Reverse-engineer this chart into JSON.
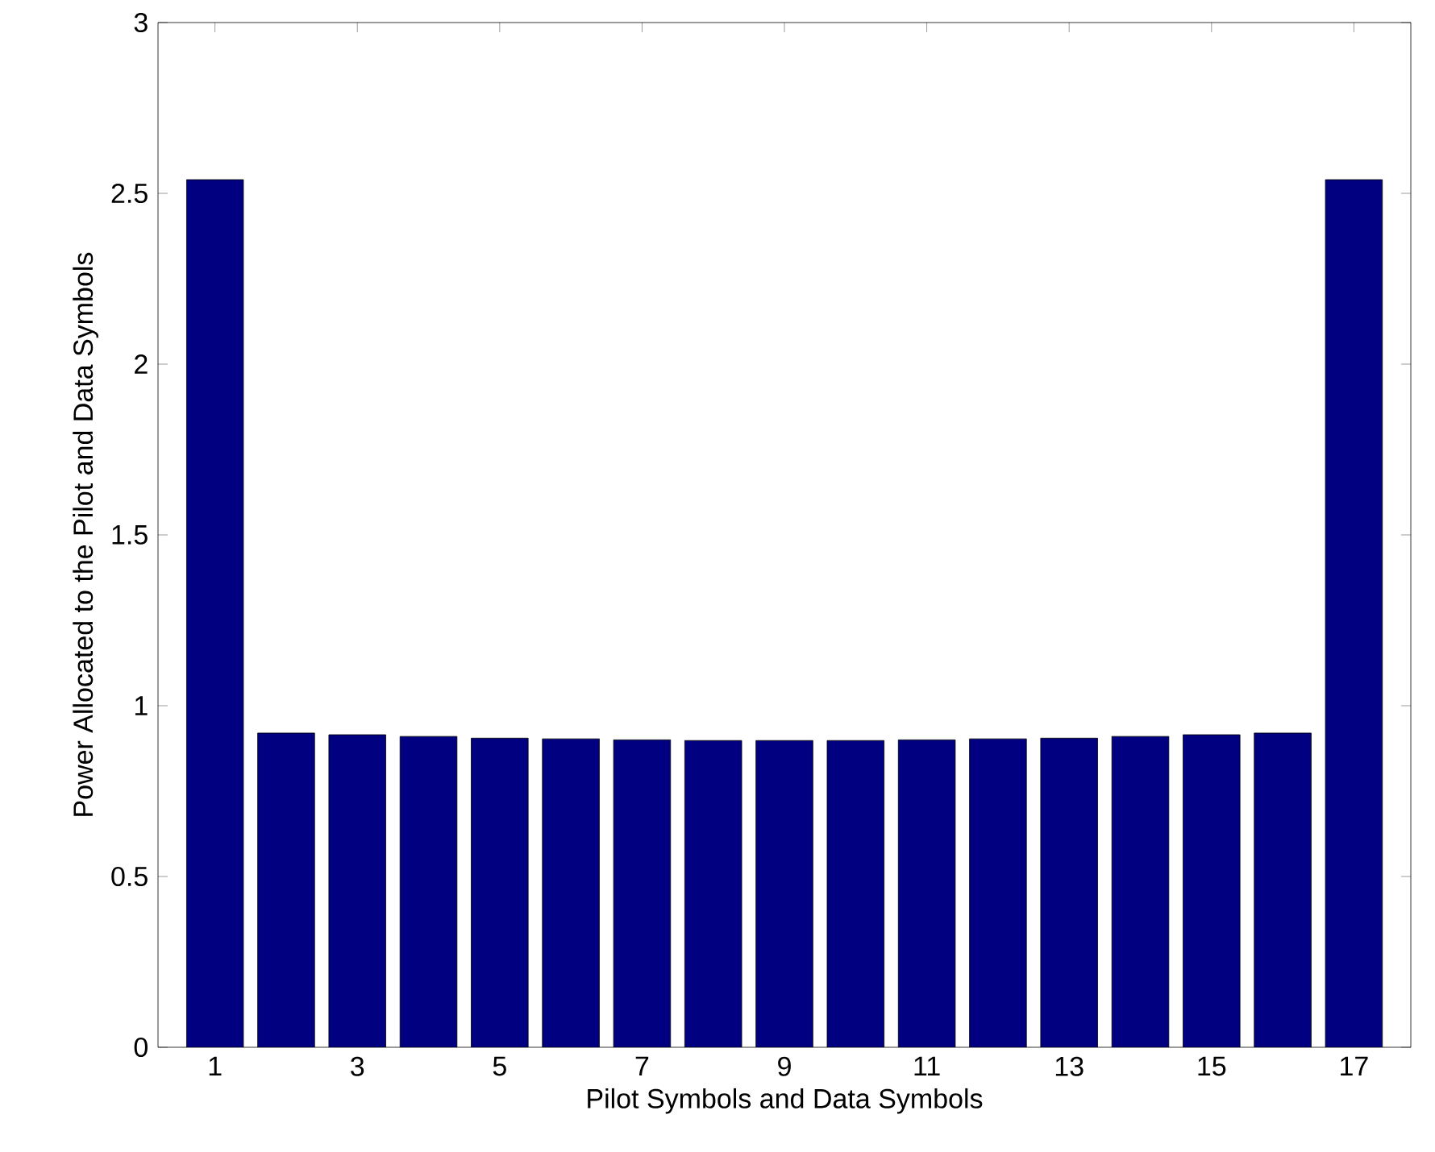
{
  "chart_data": {
    "type": "bar",
    "xlabel": "Pilot Symbols and Data Symbols",
    "ylabel": "Power Allocated to the Pilot and Data Symbols",
    "x": [
      1,
      2,
      3,
      4,
      5,
      6,
      7,
      8,
      9,
      10,
      11,
      12,
      13,
      14,
      15,
      16,
      17
    ],
    "values": [
      2.54,
      0.92,
      0.915,
      0.91,
      0.905,
      0.903,
      0.9,
      0.898,
      0.898,
      0.898,
      0.9,
      0.903,
      0.905,
      0.91,
      0.915,
      0.92,
      2.54
    ],
    "color": "#000080",
    "xlim": [
      0.2,
      17.8
    ],
    "xticks": [
      1,
      3,
      5,
      7,
      9,
      11,
      13,
      15,
      17
    ],
    "ylim": [
      0,
      3
    ],
    "yticks": [
      0,
      0.5,
      1,
      1.5,
      2,
      2.5,
      3
    ],
    "grid": false
  }
}
